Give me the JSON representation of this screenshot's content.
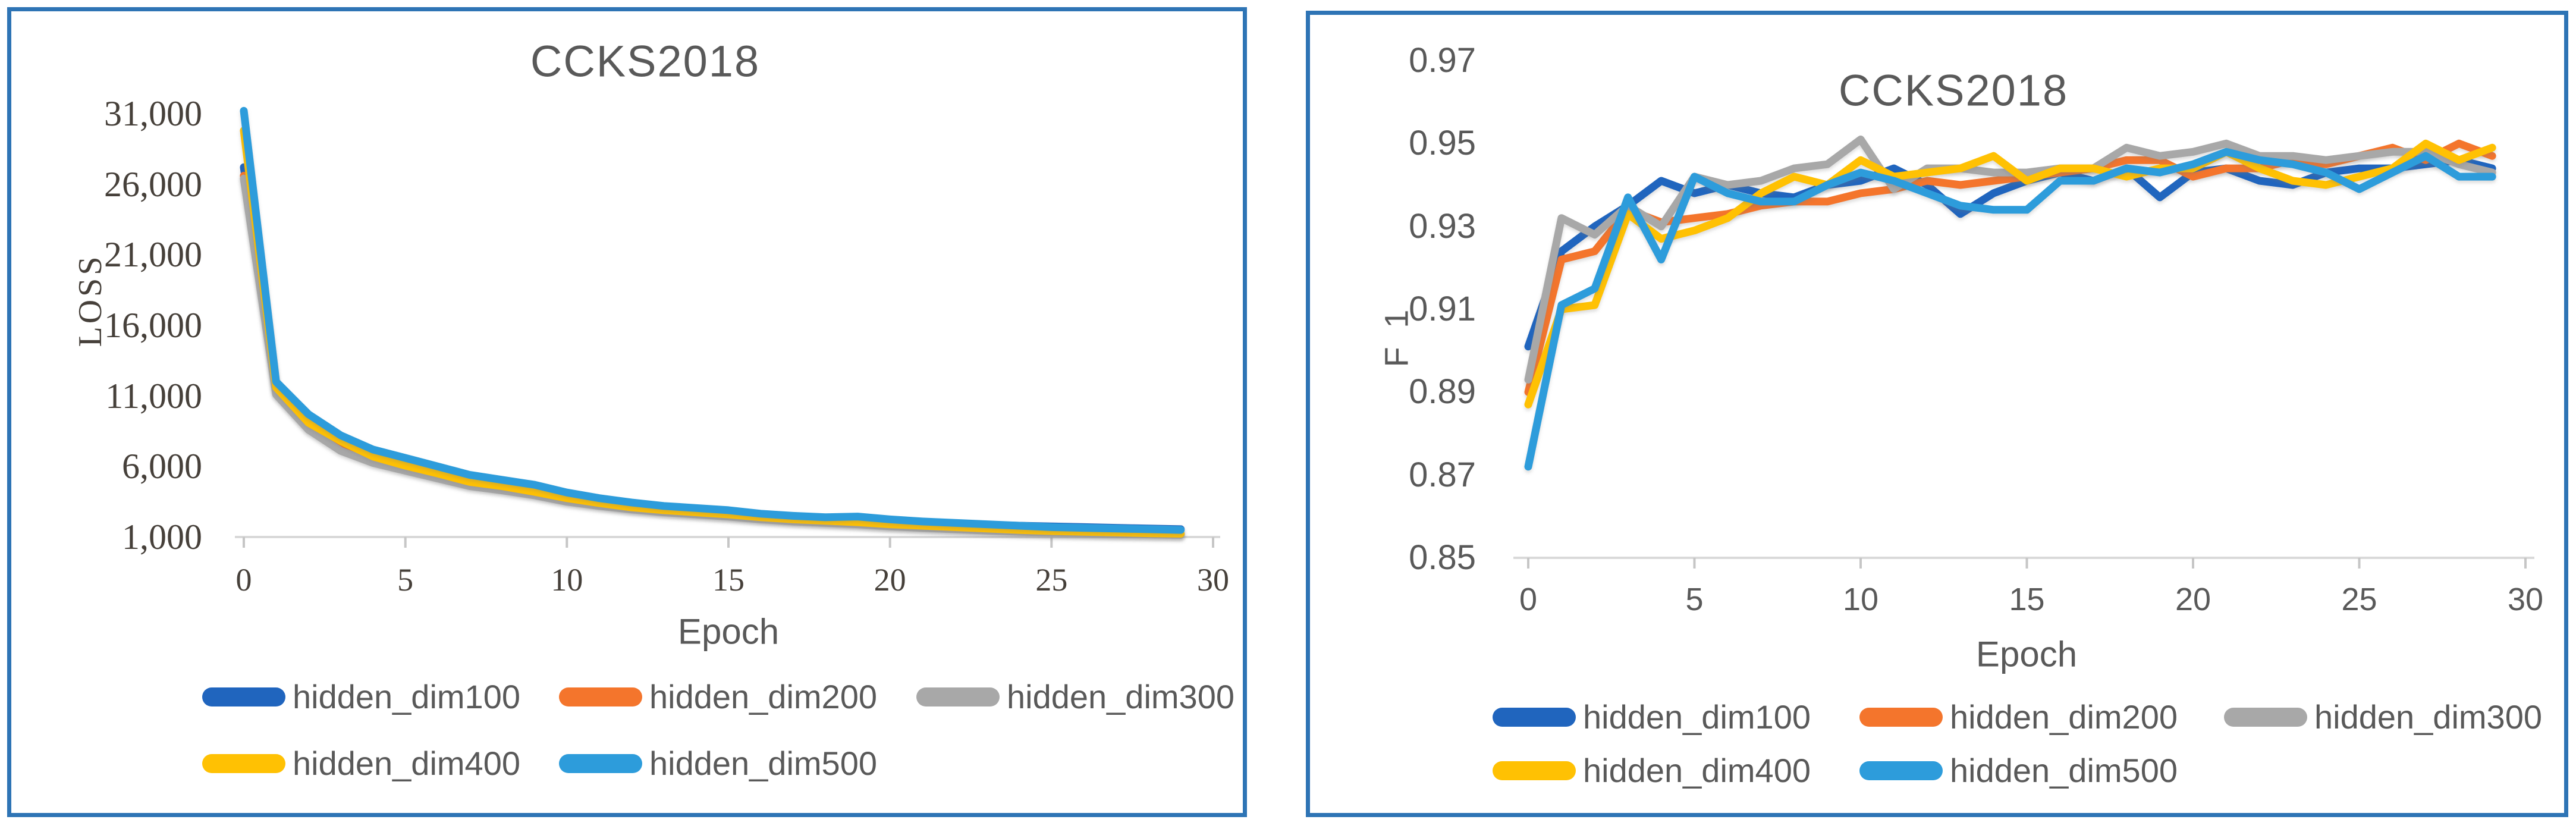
{
  "page": {
    "panel_border_color": "#2E74B5",
    "background_color": "#ffffff",
    "text_color": "#595959",
    "axis_line_color": "#D9D9D9",
    "tick_mark_color": "#C6C6C6"
  },
  "chart_data": [
    {
      "type": "line",
      "title": "CCKS2018",
      "xlabel": "Epoch",
      "ylabel": "LOSS",
      "xlim": [
        0,
        30
      ],
      "ylim": [
        1000,
        31000
      ],
      "grid": false,
      "legend_position": "bottom",
      "x_ticks": [
        0,
        5,
        10,
        15,
        20,
        25,
        30
      ],
      "y_ticks": [
        "1,000",
        "6,000",
        "11,000",
        "16,000",
        "21,000",
        "26,000",
        "31,000"
      ],
      "x": [
        0,
        1,
        2,
        3,
        4,
        5,
        6,
        7,
        8,
        9,
        10,
        11,
        12,
        13,
        14,
        15,
        16,
        17,
        18,
        19,
        20,
        21,
        22,
        23,
        24,
        25,
        26,
        27,
        28,
        29
      ],
      "series": [
        {
          "name": "hidden_dim100",
          "color": "#2065BE",
          "values": [
            27200,
            11400,
            9000,
            7700,
            6900,
            6200,
            5750,
            5150,
            4800,
            4400,
            3950,
            3550,
            3250,
            3050,
            2900,
            2750,
            2500,
            2350,
            2250,
            2150,
            2050,
            1950,
            1900,
            1850,
            1800,
            1750,
            1700,
            1650,
            1600,
            1550
          ]
        },
        {
          "name": "hidden_dim200",
          "color": "#F4752C",
          "values": [
            26600,
            11200,
            8700,
            7300,
            6400,
            5800,
            5250,
            4700,
            4400,
            4050,
            3600,
            3300,
            3000,
            2800,
            2650,
            2500,
            2300,
            2150,
            2050,
            1950,
            1800,
            1700,
            1600,
            1500,
            1400,
            1350,
            1300,
            1250,
            1220,
            1180
          ]
        },
        {
          "name": "hidden_dim300",
          "color": "#A8A8A8",
          "values": [
            26400,
            11100,
            8600,
            7100,
            6250,
            5700,
            5150,
            4600,
            4300,
            3950,
            3500,
            3200,
            2950,
            2750,
            2600,
            2450,
            2250,
            2100,
            2000,
            1900,
            1750,
            1650,
            1550,
            1450,
            1380,
            1320,
            1270,
            1220,
            1190,
            1160
          ]
        },
        {
          "name": "hidden_dim400",
          "color": "#FFC103",
          "values": [
            29800,
            11600,
            9100,
            7800,
            6700,
            6050,
            5500,
            4900,
            4600,
            4200,
            3750,
            3400,
            3100,
            2900,
            2750,
            2600,
            2400,
            2250,
            2150,
            2050,
            1900,
            1800,
            1700,
            1600,
            1500,
            1420,
            1370,
            1320,
            1270,
            1230
          ]
        },
        {
          "name": "hidden_dim500",
          "color": "#2D9CDB",
          "values": [
            31200,
            12000,
            9700,
            8200,
            7200,
            6600,
            6000,
            5400,
            5050,
            4700,
            4150,
            3750,
            3450,
            3200,
            3050,
            2900,
            2650,
            2500,
            2400,
            2450,
            2250,
            2100,
            2000,
            1900,
            1800,
            1700,
            1650,
            1600,
            1550,
            1500
          ]
        }
      ]
    },
    {
      "type": "line",
      "title": "CCKS2018",
      "xlabel": "Epoch",
      "ylabel": "F 1",
      "xlim": [
        0,
        30
      ],
      "ylim": [
        0.85,
        0.97
      ],
      "grid": false,
      "legend_position": "bottom",
      "x_ticks": [
        0,
        5,
        10,
        15,
        20,
        25,
        30
      ],
      "y_ticks": [
        "0.85",
        "0.87",
        "0.89",
        "0.91",
        "0.93",
        "0.95",
        "0.97"
      ],
      "x": [
        0,
        1,
        2,
        3,
        4,
        5,
        6,
        7,
        8,
        9,
        10,
        11,
        12,
        13,
        14,
        15,
        16,
        17,
        18,
        19,
        20,
        21,
        22,
        23,
        24,
        25,
        26,
        27,
        28,
        29
      ],
      "series": [
        {
          "name": "hidden_dim100",
          "color": "#2065BE",
          "values": [
            0.901,
            0.924,
            0.93,
            0.935,
            0.941,
            0.938,
            0.94,
            0.938,
            0.937,
            0.94,
            0.941,
            0.944,
            0.94,
            0.933,
            0.938,
            0.941,
            0.943,
            0.941,
            0.944,
            0.937,
            0.943,
            0.944,
            0.941,
            0.94,
            0.943,
            0.944,
            0.944,
            0.945,
            0.946,
            0.944
          ]
        },
        {
          "name": "hidden_dim200",
          "color": "#F4752C",
          "values": [
            0.89,
            0.922,
            0.924,
            0.934,
            0.931,
            0.932,
            0.933,
            0.935,
            0.936,
            0.936,
            0.938,
            0.939,
            0.941,
            0.94,
            0.941,
            0.942,
            0.943,
            0.944,
            0.946,
            0.946,
            0.942,
            0.944,
            0.944,
            0.946,
            0.945,
            0.947,
            0.949,
            0.946,
            0.95,
            0.947
          ]
        },
        {
          "name": "hidden_dim300",
          "color": "#A8A8A8",
          "values": [
            0.893,
            0.932,
            0.928,
            0.935,
            0.93,
            0.942,
            0.94,
            0.941,
            0.944,
            0.945,
            0.951,
            0.939,
            0.944,
            0.944,
            0.943,
            0.943,
            0.944,
            0.944,
            0.949,
            0.947,
            0.948,
            0.95,
            0.947,
            0.947,
            0.946,
            0.947,
            0.948,
            0.948,
            0.945,
            0.943
          ]
        },
        {
          "name": "hidden_dim400",
          "color": "#FFC103",
          "values": [
            0.887,
            0.91,
            0.911,
            0.933,
            0.927,
            0.929,
            0.932,
            0.938,
            0.942,
            0.94,
            0.946,
            0.942,
            0.943,
            0.944,
            0.947,
            0.941,
            0.944,
            0.944,
            0.942,
            0.944,
            0.944,
            0.948,
            0.944,
            0.941,
            0.94,
            0.942,
            0.944,
            0.95,
            0.946,
            0.949
          ]
        },
        {
          "name": "hidden_dim500",
          "color": "#2D9CDB",
          "values": [
            0.872,
            0.911,
            0.915,
            0.937,
            0.922,
            0.942,
            0.938,
            0.936,
            0.936,
            0.94,
            0.943,
            0.941,
            0.938,
            0.935,
            0.934,
            0.934,
            0.941,
            0.941,
            0.944,
            0.943,
            0.945,
            0.948,
            0.946,
            0.945,
            0.943,
            0.939,
            0.943,
            0.947,
            0.942,
            0.942
          ]
        }
      ]
    }
  ]
}
